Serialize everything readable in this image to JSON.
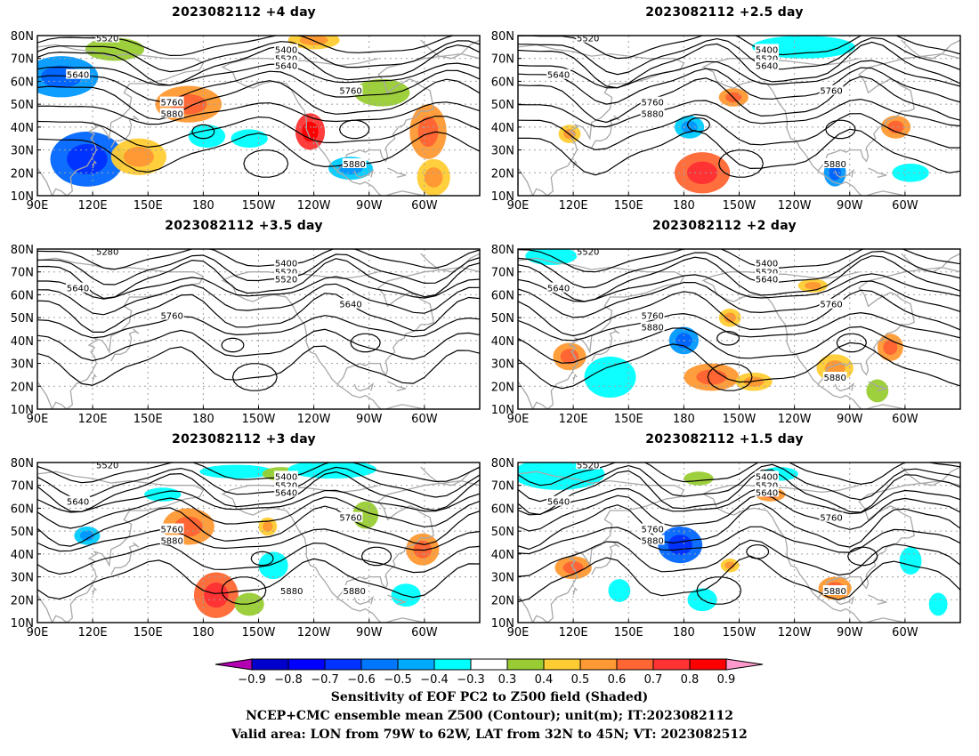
{
  "colors": {
    "contour": "#000000",
    "coast": "#a8a8a8",
    "grid": "#a0a0a0",
    "positive_palette": [
      "#99cc33",
      "#ffcc33",
      "#ff9933",
      "#ff6633",
      "#ff3333",
      "#ff0000"
    ],
    "negative_palette": [
      "#00ffff",
      "#00ccff",
      "#0099ff",
      "#0066ff",
      "#0033ff",
      "#0000cc"
    ]
  },
  "axes": {
    "lat_labels": [
      "80N",
      "70N",
      "60N",
      "50N",
      "40N",
      "30N",
      "20N",
      "10N"
    ],
    "lon_labels": [
      "90E",
      "120E",
      "150E",
      "180",
      "150W",
      "120W",
      "90W",
      "60W"
    ]
  },
  "panels": [
    {
      "title": "2023082112 +4 day",
      "contour_labels": [
        "5520",
        "5400",
        "5520",
        "5640",
        "5640",
        "5760",
        "5760",
        "5880",
        "5880"
      ],
      "blobs": [
        {
          "lon": 103,
          "lat": 62,
          "rx": 20,
          "ry": 9,
          "v": -0.6
        },
        {
          "lon": 117,
          "lat": 26,
          "rx": 20,
          "ry": 12,
          "v": -0.7
        },
        {
          "lon": 132,
          "lat": 74,
          "rx": 16,
          "ry": 5,
          "v": 0.4
        },
        {
          "lon": 145,
          "lat": 27,
          "rx": 15,
          "ry": 8,
          "v": 0.5
        },
        {
          "lon": 172,
          "lat": 50,
          "rx": 18,
          "ry": 8,
          "v": 0.6
        },
        {
          "lon": 182,
          "lat": 36,
          "rx": 10,
          "ry": 5,
          "v": -0.4
        },
        {
          "lon": 205,
          "lat": 35,
          "rx": 10,
          "ry": 4,
          "v": -0.4
        },
        {
          "lon": 238,
          "lat": 38,
          "rx": 8,
          "ry": 8,
          "v": 0.8
        },
        {
          "lon": 240,
          "lat": 78,
          "rx": 14,
          "ry": 4,
          "v": 0.5
        },
        {
          "lon": 260,
          "lat": 22,
          "rx": 12,
          "ry": 5,
          "v": -0.5
        },
        {
          "lon": 277,
          "lat": 55,
          "rx": 15,
          "ry": 6,
          "v": 0.4
        },
        {
          "lon": 302,
          "lat": 38,
          "rx": 10,
          "ry": 12,
          "v": 0.6
        },
        {
          "lon": 305,
          "lat": 18,
          "rx": 9,
          "ry": 8,
          "v": 0.5
        }
      ]
    },
    {
      "title": "2023082112 +2.5 day",
      "contour_labels": [
        "5520",
        "5400",
        "5520",
        "5640",
        "5640",
        "5760",
        "5760",
        "5880",
        "5880"
      ],
      "blobs": [
        {
          "lon": 183,
          "lat": 40,
          "rx": 8,
          "ry": 5,
          "v": -0.5
        },
        {
          "lon": 190,
          "lat": 20,
          "rx": 15,
          "ry": 9,
          "v": 0.7
        },
        {
          "lon": 207,
          "lat": 53,
          "rx": 8,
          "ry": 4,
          "v": 0.6
        },
        {
          "lon": 245,
          "lat": 75,
          "rx": 28,
          "ry": 5,
          "v": -0.4
        },
        {
          "lon": 262,
          "lat": 20,
          "rx": 6,
          "ry": 6,
          "v": -0.6
        },
        {
          "lon": 295,
          "lat": 40,
          "rx": 8,
          "ry": 5,
          "v": 0.6
        },
        {
          "lon": 118,
          "lat": 37,
          "rx": 6,
          "ry": 4,
          "v": 0.5
        },
        {
          "lon": 303,
          "lat": 20,
          "rx": 10,
          "ry": 4,
          "v": -0.4
        }
      ]
    },
    {
      "title": "2023082112 +3.5 day",
      "contour_labels": [
        "5280",
        "5400",
        "5520",
        "5520",
        "5640",
        "5640",
        "5760"
      ],
      "blobs": []
    },
    {
      "title": "2023082112 +2 day",
      "contour_labels": [
        "5520",
        "5400",
        "5520",
        "5640",
        "5640",
        "5760",
        "5760",
        "5880",
        "5880"
      ],
      "blobs": [
        {
          "lon": 108,
          "lat": 77,
          "rx": 14,
          "ry": 4,
          "v": -0.4
        },
        {
          "lon": 118,
          "lat": 33,
          "rx": 9,
          "ry": 6,
          "v": 0.6
        },
        {
          "lon": 140,
          "lat": 24,
          "rx": 14,
          "ry": 9,
          "v": -0.4
        },
        {
          "lon": 180,
          "lat": 40,
          "rx": 8,
          "ry": 6,
          "v": -0.6
        },
        {
          "lon": 195,
          "lat": 24,
          "rx": 15,
          "ry": 6,
          "v": 0.6
        },
        {
          "lon": 205,
          "lat": 50,
          "rx": 6,
          "ry": 4,
          "v": 0.5
        },
        {
          "lon": 218,
          "lat": 22,
          "rx": 10,
          "ry": 4,
          "v": 0.5
        },
        {
          "lon": 250,
          "lat": 64,
          "rx": 8,
          "ry": 3,
          "v": 0.5
        },
        {
          "lon": 262,
          "lat": 28,
          "rx": 10,
          "ry": 6,
          "v": 0.5
        },
        {
          "lon": 292,
          "lat": 37,
          "rx": 7,
          "ry": 6,
          "v": 0.6
        },
        {
          "lon": 285,
          "lat": 18,
          "rx": 6,
          "ry": 5,
          "v": 0.4
        }
      ]
    },
    {
      "title": "2023082112 +3 day",
      "contour_labels": [
        "5520",
        "5400",
        "5520",
        "5640",
        "5640",
        "5760",
        "5760",
        "5880",
        "5880",
        "5880"
      ],
      "blobs": [
        {
          "lon": 117,
          "lat": 48,
          "rx": 7,
          "ry": 4,
          "v": -0.5
        },
        {
          "lon": 158,
          "lat": 66,
          "rx": 10,
          "ry": 3,
          "v": -0.4
        },
        {
          "lon": 172,
          "lat": 52,
          "rx": 14,
          "ry": 8,
          "v": 0.6
        },
        {
          "lon": 187,
          "lat": 22,
          "rx": 12,
          "ry": 10,
          "v": 0.7
        },
        {
          "lon": 205,
          "lat": 18,
          "rx": 8,
          "ry": 5,
          "v": 0.4
        },
        {
          "lon": 198,
          "lat": 76,
          "rx": 20,
          "ry": 3,
          "v": -0.4
        },
        {
          "lon": 222,
          "lat": 75,
          "rx": 10,
          "ry": 3,
          "v": 0.4
        },
        {
          "lon": 215,
          "lat": 52,
          "rx": 5,
          "ry": 4,
          "v": 0.5
        },
        {
          "lon": 218,
          "lat": 35,
          "rx": 8,
          "ry": 6,
          "v": -0.4
        },
        {
          "lon": 250,
          "lat": 77,
          "rx": 24,
          "ry": 4,
          "v": -0.4
        },
        {
          "lon": 268,
          "lat": 57,
          "rx": 7,
          "ry": 6,
          "v": 0.4
        },
        {
          "lon": 299,
          "lat": 42,
          "rx": 9,
          "ry": 7,
          "v": 0.6
        },
        {
          "lon": 290,
          "lat": 22,
          "rx": 8,
          "ry": 5,
          "v": -0.4
        }
      ]
    },
    {
      "title": "2023082112 +1.5 day",
      "contour_labels": [
        "5520",
        "5400",
        "5520",
        "5640",
        "5640",
        "5760",
        "5760",
        "5880",
        "5880"
      ],
      "blobs": [
        {
          "lon": 112,
          "lat": 75,
          "rx": 25,
          "ry": 7,
          "v": -0.4
        },
        {
          "lon": 120,
          "lat": 34,
          "rx": 10,
          "ry": 5,
          "v": 0.6
        },
        {
          "lon": 145,
          "lat": 24,
          "rx": 6,
          "ry": 5,
          "v": -0.4
        },
        {
          "lon": 178,
          "lat": 44,
          "rx": 12,
          "ry": 8,
          "v": -0.7
        },
        {
          "lon": 188,
          "lat": 73,
          "rx": 8,
          "ry": 3,
          "v": 0.4
        },
        {
          "lon": 205,
          "lat": 35,
          "rx": 5,
          "ry": 3,
          "v": 0.5
        },
        {
          "lon": 190,
          "lat": 20,
          "rx": 8,
          "ry": 5,
          "v": -0.4
        },
        {
          "lon": 227,
          "lat": 66,
          "rx": 8,
          "ry": 3,
          "v": 0.6
        },
        {
          "lon": 232,
          "lat": 75,
          "rx": 10,
          "ry": 3,
          "v": -0.4
        },
        {
          "lon": 262,
          "lat": 25,
          "rx": 9,
          "ry": 5,
          "v": 0.6
        },
        {
          "lon": 303,
          "lat": 37,
          "rx": 6,
          "ry": 6,
          "v": -0.4
        },
        {
          "lon": 318,
          "lat": 18,
          "rx": 5,
          "ry": 5,
          "v": -0.4
        }
      ]
    }
  ],
  "colorbar": {
    "ticks": [
      "-0.9",
      "-0.8",
      "-0.7",
      "-0.6",
      "-0.5",
      "-0.4",
      "-0.3",
      "0.3",
      "0.4",
      "0.5",
      "0.6",
      "0.7",
      "0.8",
      "0.9"
    ],
    "colors": [
      "#b200b2",
      "#0000cc",
      "#0000ff",
      "#0033ff",
      "#0077ff",
      "#00aaff",
      "#00ffff",
      "#ffffff",
      "#99cc33",
      "#ffcc33",
      "#ff9933",
      "#ff6633",
      "#ff3333",
      "#ff0000",
      "#ff99cc"
    ]
  },
  "footer": {
    "line1": "Sensitivity of EOF PC2 to Z500 field (Shaded)",
    "line2": "NCEP+CMC ensemble mean Z500 (Contour); unit(m); IT:2023082112",
    "line3": "Valid area: LON from 79W to 62W, LAT from 32N to 45N; VT: 2023082512"
  }
}
